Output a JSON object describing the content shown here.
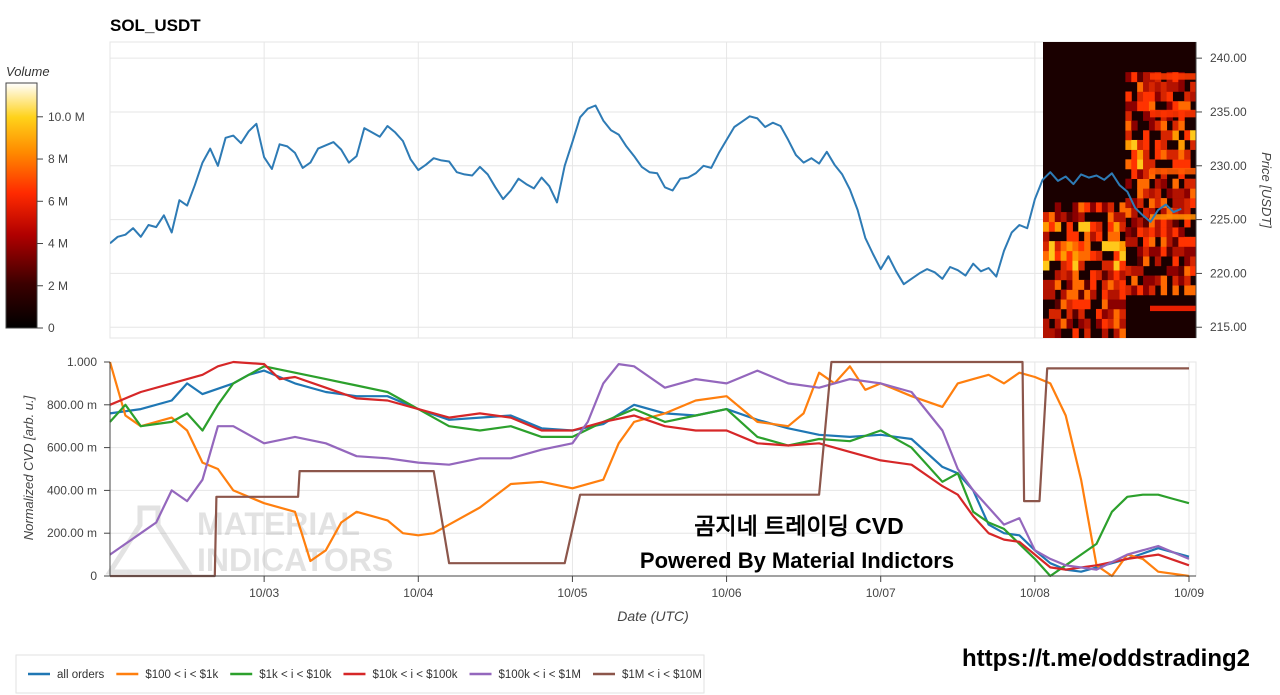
{
  "title": "SOL_USDT",
  "colorbar": {
    "title": "Volume",
    "ticks": [
      "0",
      "2 M",
      "4 M",
      "6 M",
      "8 M",
      "10.0 M"
    ],
    "tick_values": [
      0,
      2,
      4,
      6,
      8,
      10
    ]
  },
  "watermark": {
    "line1": "MATERIAL",
    "line2": "INDICATORS"
  },
  "overlay": {
    "line1": "곰지네 트레이딩 CVD",
    "line2": "Powered By Material Indictors"
  },
  "footer_link": "https://t.me/oddstrading2",
  "colors": {
    "price": "#2e7bb5",
    "all_orders": "#1f77b4",
    "s100_1k": "#ff7f0e",
    "s1k_10k": "#2ca02c",
    "s10k_100k": "#d62728",
    "s100k_1m": "#9467bd",
    "s1m_10m": "#8c564b"
  },
  "chart_data": [
    {
      "type": "line",
      "panel": "price",
      "title": "SOL_USDT",
      "ylabel": "Price [USDT]",
      "ylim": [
        214,
        241.5
      ],
      "yticks": [
        "215.00",
        "220.00",
        "225.00",
        "230.00",
        "235.00",
        "240.00"
      ],
      "ytick_values": [
        215,
        220,
        225,
        230,
        235,
        240
      ],
      "xlim": [
        0,
        7.0
      ],
      "series": [
        {
          "color": "#2e7bb5",
          "x": [
            0.0,
            0.05,
            0.1,
            0.15,
            0.2,
            0.25,
            0.3,
            0.35,
            0.4,
            0.45,
            0.5,
            0.55,
            0.6,
            0.65,
            0.7,
            0.75,
            0.8,
            0.85,
            0.9,
            0.95,
            1.0,
            1.05,
            1.1,
            1.15,
            1.2,
            1.25,
            1.3,
            1.35,
            1.4,
            1.45,
            1.5,
            1.55,
            1.6,
            1.65,
            1.7,
            1.75,
            1.8,
            1.85,
            1.9,
            1.95,
            2.0,
            2.05,
            2.1,
            2.15,
            2.2,
            2.25,
            2.3,
            2.35,
            2.4,
            2.45,
            2.5,
            2.55,
            2.6,
            2.65,
            2.7,
            2.75,
            2.8,
            2.85,
            2.9,
            2.95,
            3.0,
            3.05,
            3.1,
            3.15,
            3.2,
            3.25,
            3.3,
            3.35,
            3.4,
            3.45,
            3.5,
            3.55,
            3.6,
            3.65,
            3.7,
            3.75,
            3.8,
            3.85,
            3.9,
            3.95,
            4.0,
            4.05,
            4.1,
            4.15,
            4.2,
            4.25,
            4.3,
            4.35,
            4.4,
            4.45,
            4.5,
            4.55,
            4.6,
            4.65,
            4.7,
            4.75,
            4.8,
            4.85,
            4.9,
            4.95,
            5.0,
            5.05,
            5.1,
            5.15,
            5.2,
            5.25,
            5.3,
            5.35,
            5.4,
            5.45,
            5.5,
            5.55,
            5.6,
            5.65,
            5.7,
            5.75,
            5.8,
            5.85,
            5.9,
            5.95,
            6.0,
            6.05,
            6.1,
            6.15,
            6.2,
            6.25,
            6.3,
            6.35,
            6.4,
            6.45,
            6.5,
            6.55,
            6.6,
            6.65,
            6.7,
            6.75,
            6.8,
            6.85,
            6.9,
            6.95
          ],
          "y": [
            222.8,
            223.4,
            223.6,
            224.2,
            223.4,
            224.5,
            224.3,
            225.4,
            223.8,
            226.8,
            226.3,
            228.2,
            230.3,
            231.6,
            230.0,
            232.6,
            232.8,
            232.1,
            233.2,
            233.9,
            230.8,
            229.7,
            232.0,
            231.8,
            231.2,
            229.8,
            230.3,
            231.6,
            231.9,
            232.2,
            231.5,
            230.3,
            230.9,
            233.5,
            233.1,
            232.7,
            233.7,
            233.1,
            232.3,
            230.6,
            229.6,
            230.1,
            230.7,
            230.5,
            230.4,
            229.4,
            229.2,
            229.1,
            229.9,
            229.2,
            228.0,
            226.9,
            227.7,
            228.8,
            228.3,
            227.9,
            228.9,
            228.1,
            226.6,
            230.0,
            232.2,
            234.5,
            235.3,
            235.6,
            234.2,
            233.3,
            232.9,
            231.8,
            230.9,
            229.9,
            229.4,
            229.3,
            228.0,
            227.7,
            228.8,
            228.9,
            229.3,
            230.0,
            229.8,
            231.2,
            232.4,
            233.6,
            234.1,
            234.6,
            234.4,
            233.6,
            234.0,
            233.7,
            232.4,
            231.0,
            230.3,
            230.7,
            230.2,
            231.3,
            230.1,
            229.2,
            227.8,
            225.9,
            223.3,
            221.8,
            220.4,
            221.6,
            220.2,
            219.0,
            219.5,
            220.0,
            220.4,
            220.1,
            219.5,
            220.6,
            220.3,
            219.8,
            220.9,
            220.2,
            220.5,
            219.7,
            222.1,
            223.8,
            224.5,
            224.2,
            226.9,
            228.7,
            229.4,
            228.6,
            229.0,
            228.3,
            229.2,
            228.9,
            229.1,
            228.7,
            229.3,
            228.2,
            227.6,
            226.1,
            225.4,
            224.8,
            225.9,
            226.4,
            225.7,
            226.0
          ]
        }
      ]
    },
    {
      "type": "heatmap",
      "panel": "price",
      "colorbar_title": "Volume",
      "colorbar_range": [
        0,
        11.6
      ]
    },
    {
      "type": "line",
      "panel": "cvd",
      "ylabel": "Normalized CVD [arb. u.]",
      "xlabel": "Date (UTC)",
      "ylim": [
        0,
        1
      ],
      "yticks": [
        "0",
        "200.00 m",
        "400.00 m",
        "600.00 m",
        "800.00 m",
        "1.000"
      ],
      "ytick_values": [
        0,
        0.2,
        0.4,
        0.6,
        0.8,
        1.0
      ],
      "xlim": [
        0,
        7.0
      ],
      "xticks": [
        "10/03",
        "10/04",
        "10/05",
        "10/06",
        "10/07",
        "10/08",
        "10/09"
      ],
      "xtick_values": [
        1,
        2,
        3,
        4,
        5,
        6,
        7
      ],
      "series": [
        {
          "name": "all orders",
          "color": "#1f77b4",
          "x": [
            0.0,
            0.2,
            0.4,
            0.5,
            0.6,
            0.8,
            0.9,
            1.0,
            1.2,
            1.4,
            1.6,
            1.8,
            2.0,
            2.2,
            2.4,
            2.6,
            2.8,
            3.0,
            3.2,
            3.4,
            3.6,
            3.8,
            4.0,
            4.2,
            4.4,
            4.6,
            4.8,
            5.0,
            5.2,
            5.4,
            5.5,
            5.6,
            5.7,
            5.8,
            5.9,
            6.0,
            6.1,
            6.2,
            6.3,
            6.4,
            6.6,
            6.8,
            7.0
          ],
          "y": [
            0.76,
            0.78,
            0.82,
            0.9,
            0.85,
            0.9,
            0.94,
            0.96,
            0.9,
            0.86,
            0.84,
            0.84,
            0.78,
            0.73,
            0.74,
            0.75,
            0.69,
            0.68,
            0.71,
            0.8,
            0.76,
            0.75,
            0.78,
            0.73,
            0.69,
            0.66,
            0.65,
            0.66,
            0.64,
            0.51,
            0.48,
            0.4,
            0.24,
            0.2,
            0.19,
            0.12,
            0.06,
            0.03,
            0.02,
            0.04,
            0.08,
            0.13,
            0.09
          ]
        },
        {
          "name": "$100 < i < $1k",
          "color": "#ff7f0e",
          "x": [
            0.0,
            0.1,
            0.2,
            0.4,
            0.5,
            0.6,
            0.7,
            0.8,
            1.0,
            1.2,
            1.3,
            1.4,
            1.5,
            1.6,
            1.7,
            1.8,
            1.9,
            2.0,
            2.1,
            2.2,
            2.4,
            2.6,
            2.8,
            3.0,
            3.2,
            3.3,
            3.4,
            3.6,
            3.8,
            4.0,
            4.2,
            4.4,
            4.5,
            4.6,
            4.7,
            4.8,
            4.9,
            5.0,
            5.2,
            5.4,
            5.5,
            5.6,
            5.7,
            5.8,
            5.9,
            6.0,
            6.1,
            6.2,
            6.3,
            6.4,
            6.5,
            6.6,
            6.7,
            6.8,
            7.0
          ],
          "y": [
            1.0,
            0.75,
            0.7,
            0.74,
            0.68,
            0.53,
            0.5,
            0.4,
            0.34,
            0.3,
            0.07,
            0.12,
            0.25,
            0.3,
            0.28,
            0.26,
            0.2,
            0.19,
            0.2,
            0.24,
            0.32,
            0.43,
            0.44,
            0.41,
            0.45,
            0.62,
            0.72,
            0.76,
            0.82,
            0.84,
            0.72,
            0.7,
            0.76,
            0.95,
            0.9,
            0.98,
            0.87,
            0.9,
            0.84,
            0.79,
            0.9,
            0.92,
            0.94,
            0.9,
            0.95,
            0.93,
            0.9,
            0.75,
            0.45,
            0.05,
            0.0,
            0.1,
            0.08,
            0.02,
            0.0
          ]
        },
        {
          "name": "$1k < i < $10k",
          "color": "#2ca02c",
          "x": [
            0.0,
            0.1,
            0.2,
            0.4,
            0.5,
            0.6,
            0.7,
            0.8,
            1.0,
            1.2,
            1.4,
            1.6,
            1.8,
            2.0,
            2.2,
            2.4,
            2.6,
            2.8,
            3.0,
            3.2,
            3.4,
            3.6,
            3.8,
            4.0,
            4.2,
            4.4,
            4.6,
            4.8,
            5.0,
            5.2,
            5.4,
            5.5,
            5.6,
            5.7,
            5.8,
            5.9,
            6.0,
            6.1,
            6.2,
            6.3,
            6.4,
            6.5,
            6.6,
            6.7,
            6.8,
            6.9,
            7.0
          ],
          "y": [
            0.72,
            0.8,
            0.7,
            0.72,
            0.76,
            0.68,
            0.8,
            0.9,
            0.98,
            0.95,
            0.92,
            0.89,
            0.86,
            0.78,
            0.7,
            0.68,
            0.7,
            0.65,
            0.65,
            0.72,
            0.78,
            0.72,
            0.75,
            0.78,
            0.65,
            0.61,
            0.64,
            0.63,
            0.68,
            0.6,
            0.44,
            0.48,
            0.3,
            0.25,
            0.22,
            0.15,
            0.08,
            0.0,
            0.05,
            0.1,
            0.15,
            0.3,
            0.37,
            0.38,
            0.38,
            0.36,
            0.34
          ]
        },
        {
          "name": "$10k < i < $100k",
          "color": "#d62728",
          "x": [
            0.0,
            0.2,
            0.4,
            0.6,
            0.7,
            0.8,
            1.0,
            1.1,
            1.2,
            1.4,
            1.6,
            1.8,
            2.0,
            2.2,
            2.4,
            2.6,
            2.8,
            3.0,
            3.2,
            3.4,
            3.6,
            3.8,
            4.0,
            4.2,
            4.4,
            4.6,
            4.8,
            5.0,
            5.2,
            5.4,
            5.5,
            5.6,
            5.7,
            5.8,
            5.9,
            6.0,
            6.1,
            6.2,
            6.4,
            6.6,
            6.8,
            7.0
          ],
          "y": [
            0.8,
            0.86,
            0.9,
            0.94,
            0.98,
            1.0,
            0.99,
            0.92,
            0.93,
            0.88,
            0.83,
            0.82,
            0.78,
            0.74,
            0.76,
            0.74,
            0.68,
            0.68,
            0.72,
            0.75,
            0.7,
            0.68,
            0.68,
            0.62,
            0.61,
            0.62,
            0.58,
            0.54,
            0.52,
            0.42,
            0.38,
            0.28,
            0.2,
            0.17,
            0.16,
            0.1,
            0.04,
            0.03,
            0.05,
            0.08,
            0.1,
            0.05
          ]
        },
        {
          "name": "$100k < i < $1M",
          "color": "#9467bd",
          "x": [
            0.0,
            0.1,
            0.2,
            0.3,
            0.4,
            0.5,
            0.6,
            0.7,
            0.8,
            1.0,
            1.2,
            1.4,
            1.6,
            1.8,
            2.0,
            2.2,
            2.4,
            2.6,
            2.8,
            3.0,
            3.1,
            3.2,
            3.3,
            3.4,
            3.6,
            3.8,
            4.0,
            4.2,
            4.4,
            4.6,
            4.8,
            5.0,
            5.2,
            5.4,
            5.5,
            5.6,
            5.7,
            5.8,
            5.9,
            6.0,
            6.1,
            6.2,
            6.4,
            6.6,
            6.8,
            7.0
          ],
          "y": [
            0.1,
            0.15,
            0.2,
            0.25,
            0.4,
            0.35,
            0.45,
            0.7,
            0.7,
            0.62,
            0.65,
            0.62,
            0.56,
            0.55,
            0.53,
            0.52,
            0.55,
            0.55,
            0.59,
            0.62,
            0.72,
            0.9,
            0.99,
            0.98,
            0.88,
            0.92,
            0.9,
            0.96,
            0.9,
            0.88,
            0.92,
            0.9,
            0.86,
            0.68,
            0.5,
            0.4,
            0.32,
            0.24,
            0.27,
            0.12,
            0.08,
            0.05,
            0.03,
            0.1,
            0.14,
            0.08
          ]
        },
        {
          "name": "$1M < i < $10M",
          "color": "#8c564b",
          "x": [
            0.0,
            0.68,
            0.69,
            1.22,
            1.23,
            2.1,
            2.2,
            2.95,
            3.05,
            4.6,
            4.68,
            5.92,
            5.93,
            6.03,
            6.08,
            7.0
          ],
          "y": [
            0.0,
            0.0,
            0.37,
            0.37,
            0.49,
            0.49,
            0.06,
            0.06,
            0.38,
            0.38,
            1.0,
            1.0,
            0.35,
            0.35,
            0.97,
            0.97
          ]
        }
      ]
    }
  ]
}
